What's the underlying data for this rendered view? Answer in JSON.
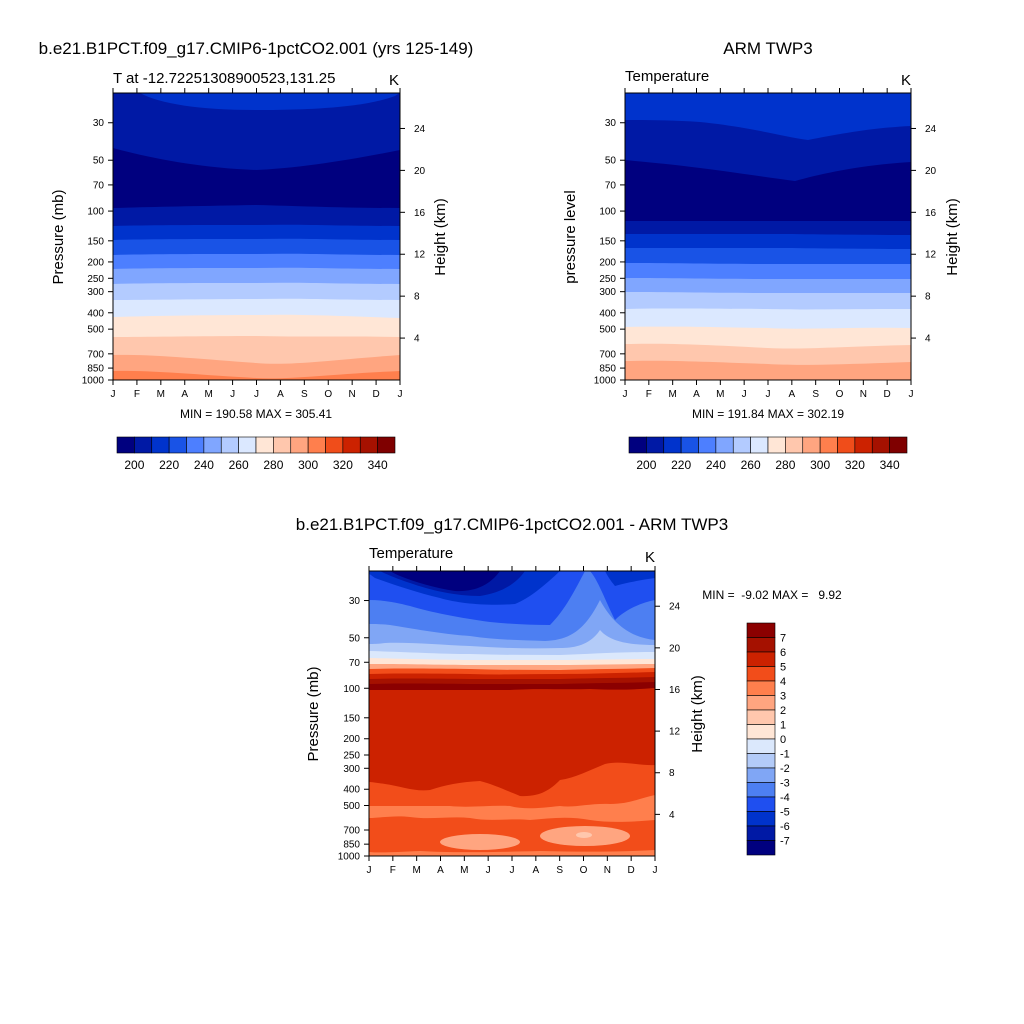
{
  "chart_data": [
    {
      "type": "heatmap",
      "title": "b.e21.B1PCT.f09_g17.CMIP6-1pctCO2.001 (yrs 125-149)",
      "subtitle_left": "T at -12.72251308900523,131.25",
      "subtitle_right": "K",
      "xlabel": "",
      "ylabel": "Pressure (mb)",
      "ylabel_right": "Height (km)",
      "x": [
        "J",
        "F",
        "M",
        "A",
        "M",
        "J",
        "J",
        "A",
        "S",
        "O",
        "N",
        "D",
        "J"
      ],
      "y_ticks": [
        30,
        50,
        70,
        100,
        150,
        200,
        250,
        300,
        400,
        500,
        700,
        850,
        1000
      ],
      "y_right_ticks": [
        24,
        20,
        16,
        12,
        8,
        4
      ],
      "ylim": [
        1000,
        20
      ],
      "y_scale": "log",
      "levels": [
        200,
        220,
        240,
        260,
        280,
        300,
        320,
        340
      ],
      "colorbar_labels": [
        "200",
        "220",
        "240",
        "260",
        "280",
        "300",
        "320",
        "340"
      ],
      "colorbar_orientation": "horizontal",
      "stats": "MIN = 190.58 MAX = 305.41",
      "min": 190.58,
      "max": 305.41
    },
    {
      "type": "heatmap",
      "title": "ARM TWP3",
      "subtitle_left": "Temperature",
      "subtitle_right": "K",
      "xlabel": "",
      "ylabel": "pressure level",
      "ylabel_right": "Height (km)",
      "x": [
        "J",
        "F",
        "M",
        "A",
        "M",
        "J",
        "J",
        "A",
        "S",
        "O",
        "N",
        "D",
        "J"
      ],
      "y_ticks": [
        30,
        50,
        70,
        100,
        150,
        200,
        250,
        300,
        400,
        500,
        700,
        850,
        1000
      ],
      "y_right_ticks": [
        24,
        20,
        16,
        12,
        8,
        4
      ],
      "ylim": [
        1000,
        20
      ],
      "y_scale": "log",
      "levels": [
        200,
        220,
        240,
        260,
        280,
        300,
        320,
        340
      ],
      "colorbar_labels": [
        "200",
        "220",
        "240",
        "260",
        "280",
        "300",
        "320",
        "340"
      ],
      "colorbar_orientation": "horizontal",
      "stats": "MIN = 191.84 MAX = 302.19",
      "min": 191.84,
      "max": 302.19
    },
    {
      "type": "heatmap",
      "title": "b.e21.B1PCT.f09_g17.CMIP6-1pctCO2.001 - ARM TWP3",
      "subtitle_left": "Temperature",
      "subtitle_right": "K",
      "xlabel": "",
      "ylabel": "Pressure (mb)",
      "ylabel_right": "Height (km)",
      "x": [
        "J",
        "F",
        "M",
        "A",
        "M",
        "J",
        "J",
        "A",
        "S",
        "O",
        "N",
        "D",
        "J"
      ],
      "y_ticks": [
        30,
        50,
        70,
        100,
        150,
        200,
        250,
        300,
        400,
        500,
        700,
        850,
        1000
      ],
      "y_right_ticks": [
        24,
        20,
        16,
        12,
        8,
        4
      ],
      "ylim": [
        1000,
        20
      ],
      "y_scale": "log",
      "levels": [
        -7,
        -6,
        -5,
        -4,
        -3,
        -2,
        -1,
        0,
        1,
        2,
        3,
        4,
        5,
        6,
        7
      ],
      "colorbar_labels": [
        "7",
        "6",
        "5",
        "4",
        "3",
        "2",
        "1",
        "0",
        "-1",
        "-2",
        "-3",
        "-4",
        "-5",
        "-6",
        "-7"
      ],
      "colorbar_orientation": "vertical",
      "stats": "MIN =  -9.02 MAX =   9.92",
      "min": -9.02,
      "max": 9.92
    }
  ],
  "colors": {
    "abs_palette": [
      "#00007f",
      "#0019a5",
      "#0033cc",
      "#1953e6",
      "#4d7fff",
      "#80a6ff",
      "#b3cbff",
      "#dbe8ff",
      "#ffe6d6",
      "#ffc7ad",
      "#ffa580",
      "#ff7f4d",
      "#f04d1a",
      "#cc2200",
      "#a51100",
      "#7f0000"
    ],
    "diff_palette": [
      "#00007f",
      "#0019a5",
      "#0033cc",
      "#1f4ff0",
      "#4d7ff2",
      "#80a6f5",
      "#b3cbf8",
      "#dbe8fc",
      "#ffe6d6",
      "#ffc7ad",
      "#ffa580",
      "#ff7f4d",
      "#f24d1a",
      "#cc2200",
      "#a51100",
      "#8b0000"
    ]
  }
}
